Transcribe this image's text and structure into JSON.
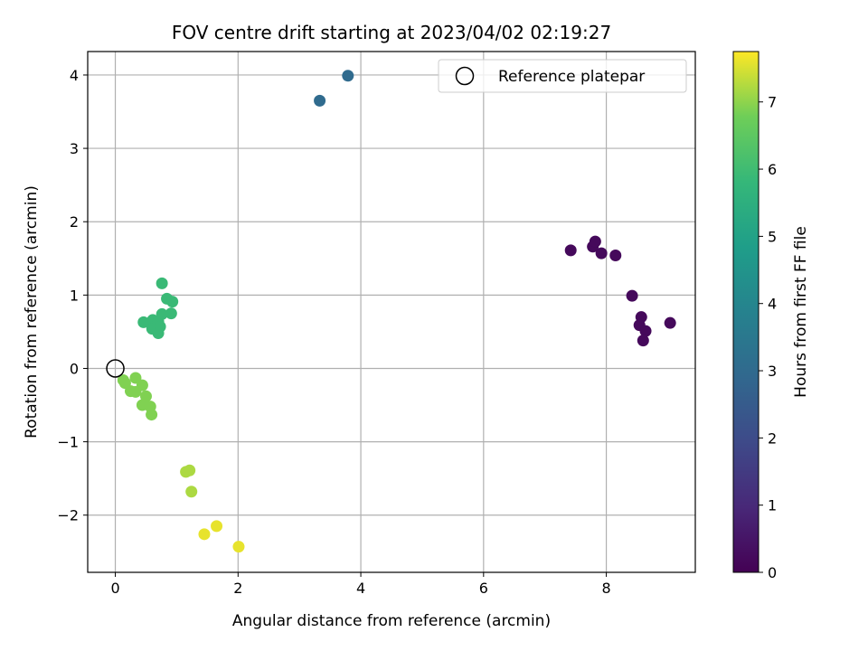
{
  "chart_data": {
    "type": "scatter",
    "title": "FOV centre drift starting at 2023/04/02 02:19:27",
    "xlabel": "Angular distance from reference (arcmin)",
    "ylabel": "Rotation from reference (arcmin)",
    "xlim": [
      -0.45,
      9.45
    ],
    "ylim": [
      -2.78,
      4.32
    ],
    "x_ticks": [
      0,
      2,
      4,
      6,
      8
    ],
    "y_ticks": [
      -2,
      -1,
      0,
      1,
      2,
      3,
      4
    ],
    "x_tick_labels": [
      "0",
      "2",
      "4",
      "6",
      "8"
    ],
    "y_tick_labels": [
      "−2",
      "−1",
      "0",
      "1",
      "2",
      "3",
      "4"
    ],
    "grid": true,
    "legend": {
      "position": "top-right",
      "entries": [
        "Reference platepar"
      ]
    },
    "reference_point": {
      "x": 0,
      "y": 0,
      "label": "Reference platepar"
    },
    "colormap": "viridis",
    "colorbar": {
      "label": "Hours from first FF file",
      "range": [
        0,
        7.75
      ],
      "ticks": [
        0,
        1,
        2,
        3,
        4,
        5,
        6,
        7
      ],
      "tick_labels": [
        "0",
        "1",
        "2",
        "3",
        "4",
        "5",
        "6",
        "7"
      ]
    },
    "points": [
      {
        "x": 7.42,
        "y": 1.61,
        "c": 0.2
      },
      {
        "x": 7.78,
        "y": 1.66,
        "c": 0.2
      },
      {
        "x": 7.82,
        "y": 1.73,
        "c": 0.2
      },
      {
        "x": 7.92,
        "y": 1.57,
        "c": 0.2
      },
      {
        "x": 8.15,
        "y": 1.54,
        "c": 0.2
      },
      {
        "x": 8.42,
        "y": 0.99,
        "c": 0.2
      },
      {
        "x": 8.54,
        "y": 0.59,
        "c": 0.2
      },
      {
        "x": 8.57,
        "y": 0.7,
        "c": 0.2
      },
      {
        "x": 8.64,
        "y": 0.51,
        "c": 0.2
      },
      {
        "x": 8.6,
        "y": 0.38,
        "c": 0.2
      },
      {
        "x": 9.04,
        "y": 0.62,
        "c": 0.2
      },
      {
        "x": 3.33,
        "y": 3.65,
        "c": 3.0
      },
      {
        "x": 3.79,
        "y": 3.99,
        "c": 3.0
      },
      {
        "x": 0.76,
        "y": 1.16,
        "c": 5.9
      },
      {
        "x": 0.84,
        "y": 0.95,
        "c": 5.9
      },
      {
        "x": 0.93,
        "y": 0.91,
        "c": 5.9
      },
      {
        "x": 0.91,
        "y": 0.75,
        "c": 5.9
      },
      {
        "x": 0.76,
        "y": 0.74,
        "c": 5.9
      },
      {
        "x": 0.46,
        "y": 0.63,
        "c": 5.9
      },
      {
        "x": 0.61,
        "y": 0.66,
        "c": 5.9
      },
      {
        "x": 0.7,
        "y": 0.64,
        "c": 5.9
      },
      {
        "x": 0.73,
        "y": 0.57,
        "c": 5.9
      },
      {
        "x": 0.6,
        "y": 0.54,
        "c": 5.9
      },
      {
        "x": 0.7,
        "y": 0.48,
        "c": 5.9
      },
      {
        "x": 0.13,
        "y": -0.16,
        "c": 6.9
      },
      {
        "x": 0.16,
        "y": -0.2,
        "c": 6.9
      },
      {
        "x": 0.33,
        "y": -0.13,
        "c": 6.9
      },
      {
        "x": 0.44,
        "y": -0.23,
        "c": 6.9
      },
      {
        "x": 0.25,
        "y": -0.31,
        "c": 6.9
      },
      {
        "x": 0.33,
        "y": -0.32,
        "c": 6.9
      },
      {
        "x": 0.5,
        "y": -0.38,
        "c": 6.9
      },
      {
        "x": 0.44,
        "y": -0.5,
        "c": 6.9
      },
      {
        "x": 0.57,
        "y": -0.52,
        "c": 6.9
      },
      {
        "x": 0.59,
        "y": -0.63,
        "c": 6.9
      },
      {
        "x": 1.15,
        "y": -1.41,
        "c": 7.2
      },
      {
        "x": 1.21,
        "y": -1.39,
        "c": 7.2
      },
      {
        "x": 1.24,
        "y": -1.68,
        "c": 7.2
      },
      {
        "x": 1.65,
        "y": -2.15,
        "c": 7.6
      },
      {
        "x": 1.45,
        "y": -2.26,
        "c": 7.6
      },
      {
        "x": 2.01,
        "y": -2.43,
        "c": 7.6
      }
    ]
  }
}
